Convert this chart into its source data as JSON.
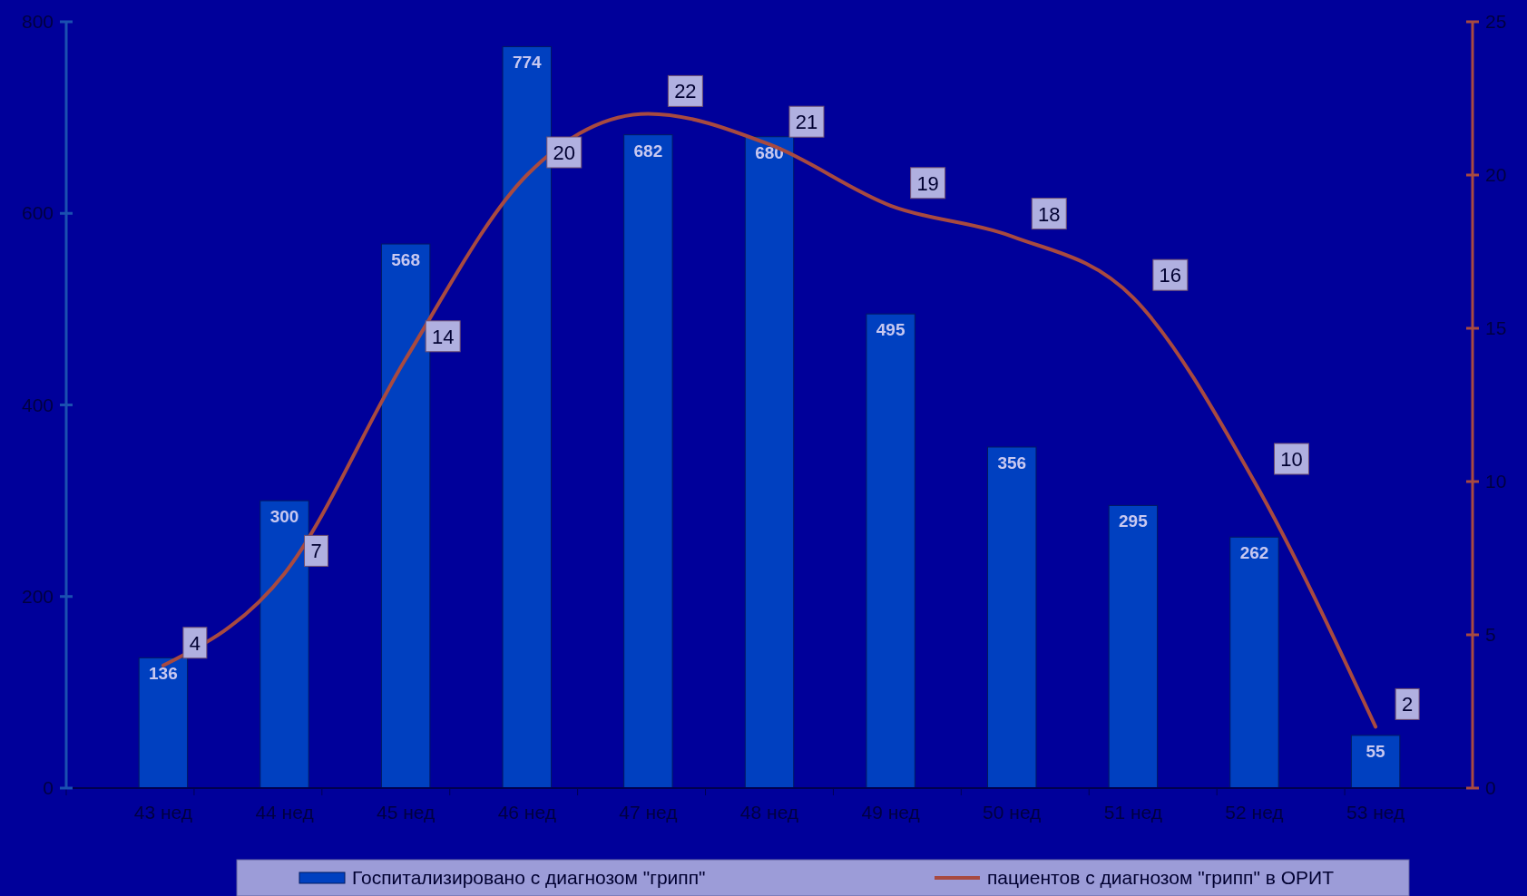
{
  "chart_data": {
    "type": "bar",
    "categories": [
      "43 нед",
      "44 нед",
      "45 нед",
      "46 нед",
      "47 нед",
      "48 нед",
      "49 нед",
      "50 нед",
      "51 нед",
      "52 нед",
      "53 нед"
    ],
    "series": [
      {
        "name": "Госпитализировано с диагнозом \"грипп\"",
        "color": "#0040c0",
        "values": [
          136,
          300,
          568,
          774,
          682,
          680,
          495,
          356,
          295,
          262,
          55
        ]
      },
      {
        "name": "пациентов с диагнозом \"грипп\" в ОРИТ",
        "type": "line",
        "axis": "y2",
        "color": "#a84a40",
        "values": [
          4,
          7,
          14,
          20,
          22,
          21,
          19,
          18,
          16,
          10,
          2
        ]
      }
    ],
    "ylim": [
      0,
      800
    ],
    "yticks": [
      0,
      200,
      400,
      600,
      800
    ],
    "y2lim": [
      0,
      25
    ],
    "y2ticks": [
      0,
      5,
      10,
      15,
      20,
      25
    ],
    "data_labels": true,
    "legend": "bottom",
    "grid": false,
    "marker": "none",
    "line_style": "solid"
  }
}
